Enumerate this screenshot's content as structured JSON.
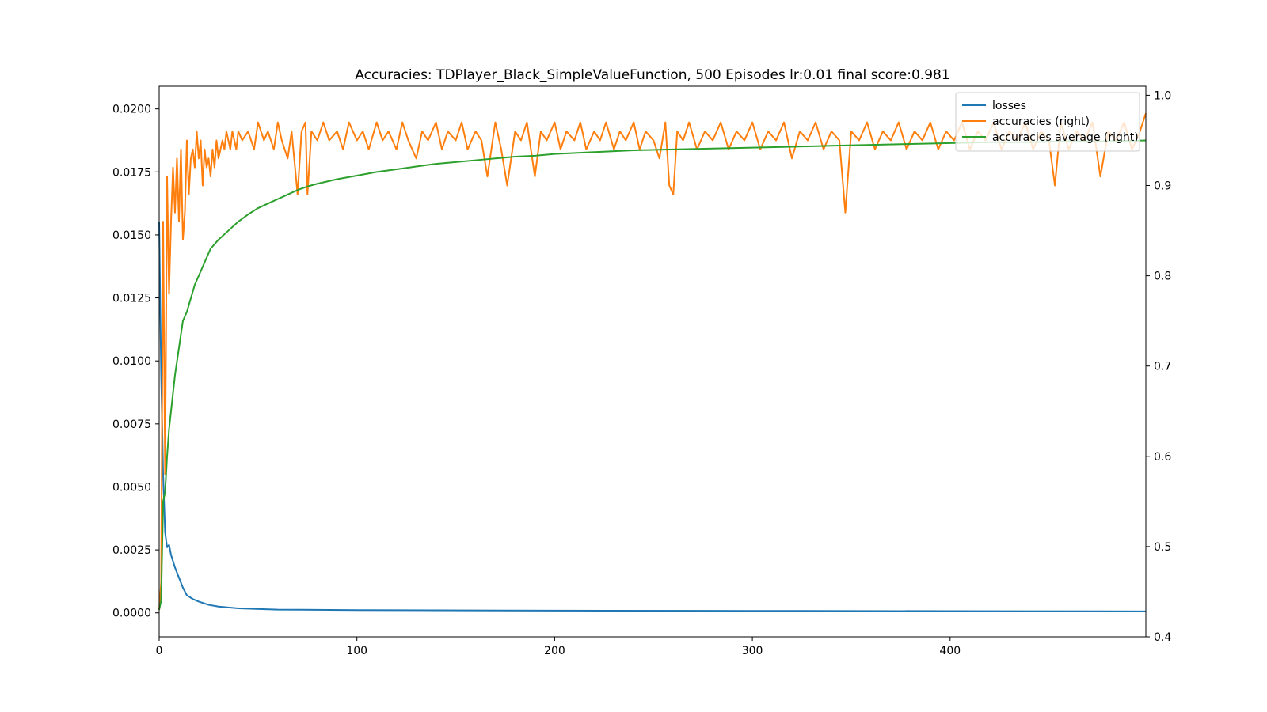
{
  "chart_data": {
    "type": "line",
    "title": "Accuracies: TDPlayer_Black_SimpleValueFunction, 500 Episodes  lr:0.01 final score:0.981",
    "xlabel": "",
    "ylabel_left": "",
    "ylabel_right": "",
    "xlim": [
      0,
      499
    ],
    "ylim_left": [
      -0.00095,
      0.0209
    ],
    "ylim_right": [
      0.4,
      1.01
    ],
    "x_ticks": [
      0,
      100,
      200,
      300,
      400
    ],
    "y_left_ticks": [
      "0.0000",
      "0.0025",
      "0.0050",
      "0.0075",
      "0.0100",
      "0.0125",
      "0.0150",
      "0.0175",
      "0.0200"
    ],
    "y_left_tick_values": [
      0.0,
      0.0025,
      0.005,
      0.0075,
      0.01,
      0.0125,
      0.015,
      0.0175,
      0.02
    ],
    "y_right_ticks": [
      "0.4",
      "0.5",
      "0.6",
      "0.7",
      "0.8",
      "0.9",
      "1.0"
    ],
    "y_right_tick_values": [
      0.4,
      0.5,
      0.6,
      0.7,
      0.8,
      0.9,
      1.0
    ],
    "grid": false,
    "legend_position": "top-right",
    "series": [
      {
        "name": "losses",
        "axis": "left",
        "color": "#1f77b4",
        "points": [
          [
            0,
            0.0155
          ],
          [
            1,
            0.0095
          ],
          [
            2,
            0.0055
          ],
          [
            3,
            0.0032
          ],
          [
            4,
            0.0026
          ],
          [
            5,
            0.0027
          ],
          [
            6,
            0.0023
          ],
          [
            8,
            0.0018
          ],
          [
            10,
            0.0014
          ],
          [
            12,
            0.001
          ],
          [
            14,
            0.0007
          ],
          [
            17,
            0.00055
          ],
          [
            20,
            0.00045
          ],
          [
            25,
            0.00032
          ],
          [
            30,
            0.00025
          ],
          [
            40,
            0.00018
          ],
          [
            60,
            0.00013
          ],
          [
            100,
            0.00011
          ],
          [
            200,
            9e-05
          ],
          [
            300,
            8e-05
          ],
          [
            400,
            7e-05
          ],
          [
            499,
            6e-05
          ]
        ]
      },
      {
        "name": "accuracies (right)",
        "axis": "right",
        "color": "#ff7f0e",
        "points": [
          [
            0,
            0.43
          ],
          [
            1,
            0.46
          ],
          [
            2,
            0.86
          ],
          [
            3,
            0.58
          ],
          [
            4,
            0.91
          ],
          [
            5,
            0.78
          ],
          [
            6,
            0.86
          ],
          [
            7,
            0.92
          ],
          [
            8,
            0.87
          ],
          [
            9,
            0.93
          ],
          [
            10,
            0.86
          ],
          [
            11,
            0.94
          ],
          [
            12,
            0.84
          ],
          [
            13,
            0.87
          ],
          [
            14,
            0.95
          ],
          [
            15,
            0.89
          ],
          [
            16,
            0.93
          ],
          [
            17,
            0.94
          ],
          [
            18,
            0.92
          ],
          [
            19,
            0.96
          ],
          [
            20,
            0.93
          ],
          [
            21,
            0.95
          ],
          [
            22,
            0.9
          ],
          [
            23,
            0.94
          ],
          [
            24,
            0.92
          ],
          [
            25,
            0.93
          ],
          [
            26,
            0.91
          ],
          [
            27,
            0.94
          ],
          [
            28,
            0.92
          ],
          [
            29,
            0.95
          ],
          [
            30,
            0.93
          ],
          [
            31,
            0.94
          ],
          [
            32,
            0.95
          ],
          [
            33,
            0.94
          ],
          [
            34,
            0.96
          ],
          [
            35,
            0.95
          ],
          [
            36,
            0.94
          ],
          [
            37,
            0.96
          ],
          [
            38,
            0.95
          ],
          [
            39,
            0.94
          ],
          [
            40,
            0.96
          ],
          [
            42,
            0.95
          ],
          [
            45,
            0.96
          ],
          [
            48,
            0.94
          ],
          [
            50,
            0.97
          ],
          [
            53,
            0.95
          ],
          [
            55,
            0.96
          ],
          [
            58,
            0.94
          ],
          [
            60,
            0.97
          ],
          [
            62,
            0.95
          ],
          [
            65,
            0.93
          ],
          [
            67,
            0.96
          ],
          [
            70,
            0.89
          ],
          [
            72,
            0.96
          ],
          [
            74,
            0.97
          ],
          [
            75,
            0.89
          ],
          [
            77,
            0.96
          ],
          [
            80,
            0.95
          ],
          [
            83,
            0.97
          ],
          [
            86,
            0.95
          ],
          [
            90,
            0.96
          ],
          [
            93,
            0.94
          ],
          [
            96,
            0.97
          ],
          [
            100,
            0.95
          ],
          [
            103,
            0.96
          ],
          [
            106,
            0.94
          ],
          [
            110,
            0.97
          ],
          [
            113,
            0.95
          ],
          [
            116,
            0.96
          ],
          [
            120,
            0.94
          ],
          [
            123,
            0.97
          ],
          [
            126,
            0.95
          ],
          [
            130,
            0.93
          ],
          [
            133,
            0.96
          ],
          [
            136,
            0.95
          ],
          [
            140,
            0.97
          ],
          [
            143,
            0.94
          ],
          [
            146,
            0.96
          ],
          [
            150,
            0.95
          ],
          [
            153,
            0.97
          ],
          [
            156,
            0.94
          ],
          [
            160,
            0.96
          ],
          [
            163,
            0.95
          ],
          [
            166,
            0.91
          ],
          [
            170,
            0.97
          ],
          [
            173,
            0.94
          ],
          [
            176,
            0.9
          ],
          [
            180,
            0.96
          ],
          [
            183,
            0.95
          ],
          [
            186,
            0.97
          ],
          [
            190,
            0.91
          ],
          [
            193,
            0.96
          ],
          [
            196,
            0.95
          ],
          [
            200,
            0.97
          ],
          [
            203,
            0.94
          ],
          [
            206,
            0.96
          ],
          [
            210,
            0.95
          ],
          [
            213,
            0.97
          ],
          [
            216,
            0.94
          ],
          [
            220,
            0.96
          ],
          [
            223,
            0.95
          ],
          [
            226,
            0.97
          ],
          [
            230,
            0.94
          ],
          [
            233,
            0.96
          ],
          [
            236,
            0.95
          ],
          [
            240,
            0.97
          ],
          [
            243,
            0.94
          ],
          [
            246,
            0.96
          ],
          [
            250,
            0.95
          ],
          [
            253,
            0.93
          ],
          [
            256,
            0.97
          ],
          [
            258,
            0.9
          ],
          [
            260,
            0.89
          ],
          [
            262,
            0.96
          ],
          [
            265,
            0.95
          ],
          [
            268,
            0.97
          ],
          [
            272,
            0.94
          ],
          [
            276,
            0.96
          ],
          [
            280,
            0.95
          ],
          [
            284,
            0.97
          ],
          [
            288,
            0.94
          ],
          [
            292,
            0.96
          ],
          [
            296,
            0.95
          ],
          [
            300,
            0.97
          ],
          [
            304,
            0.94
          ],
          [
            308,
            0.96
          ],
          [
            312,
            0.95
          ],
          [
            316,
            0.97
          ],
          [
            320,
            0.93
          ],
          [
            324,
            0.96
          ],
          [
            328,
            0.95
          ],
          [
            332,
            0.97
          ],
          [
            336,
            0.94
          ],
          [
            340,
            0.96
          ],
          [
            344,
            0.95
          ],
          [
            347,
            0.87
          ],
          [
            350,
            0.96
          ],
          [
            354,
            0.95
          ],
          [
            358,
            0.97
          ],
          [
            362,
            0.94
          ],
          [
            366,
            0.96
          ],
          [
            370,
            0.95
          ],
          [
            374,
            0.97
          ],
          [
            378,
            0.94
          ],
          [
            382,
            0.96
          ],
          [
            386,
            0.95
          ],
          [
            390,
            0.97
          ],
          [
            394,
            0.94
          ],
          [
            398,
            0.96
          ],
          [
            402,
            0.95
          ],
          [
            406,
            0.97
          ],
          [
            410,
            0.94
          ],
          [
            414,
            0.96
          ],
          [
            418,
            0.95
          ],
          [
            422,
            0.97
          ],
          [
            426,
            0.94
          ],
          [
            430,
            0.96
          ],
          [
            434,
            0.95
          ],
          [
            438,
            0.97
          ],
          [
            442,
            0.94
          ],
          [
            446,
            0.96
          ],
          [
            450,
            0.95
          ],
          [
            453,
            0.9
          ],
          [
            456,
            0.97
          ],
          [
            460,
            0.94
          ],
          [
            464,
            0.96
          ],
          [
            468,
            0.95
          ],
          [
            472,
            0.97
          ],
          [
            476,
            0.91
          ],
          [
            480,
            0.96
          ],
          [
            484,
            0.95
          ],
          [
            488,
            0.97
          ],
          [
            492,
            0.94
          ],
          [
            496,
            0.96
          ],
          [
            499,
            0.98
          ]
        ]
      },
      {
        "name": "accuracies average (right)",
        "axis": "right",
        "color": "#2ca02c",
        "points": [
          [
            0,
            0.43
          ],
          [
            1,
            0.44
          ],
          [
            2,
            0.55
          ],
          [
            3,
            0.56
          ],
          [
            4,
            0.6
          ],
          [
            5,
            0.63
          ],
          [
            6,
            0.65
          ],
          [
            8,
            0.69
          ],
          [
            10,
            0.72
          ],
          [
            12,
            0.75
          ],
          [
            14,
            0.76
          ],
          [
            16,
            0.775
          ],
          [
            18,
            0.79
          ],
          [
            20,
            0.8
          ],
          [
            23,
            0.815
          ],
          [
            26,
            0.83
          ],
          [
            30,
            0.84
          ],
          [
            35,
            0.85
          ],
          [
            40,
            0.86
          ],
          [
            45,
            0.868
          ],
          [
            50,
            0.875
          ],
          [
            55,
            0.88
          ],
          [
            60,
            0.885
          ],
          [
            65,
            0.89
          ],
          [
            70,
            0.895
          ],
          [
            75,
            0.899
          ],
          [
            80,
            0.902
          ],
          [
            90,
            0.907
          ],
          [
            100,
            0.911
          ],
          [
            110,
            0.915
          ],
          [
            120,
            0.918
          ],
          [
            130,
            0.921
          ],
          [
            140,
            0.924
          ],
          [
            150,
            0.926
          ],
          [
            160,
            0.928
          ],
          [
            170,
            0.93
          ],
          [
            180,
            0.932
          ],
          [
            190,
            0.933
          ],
          [
            200,
            0.935
          ],
          [
            220,
            0.937
          ],
          [
            240,
            0.939
          ],
          [
            260,
            0.94
          ],
          [
            280,
            0.941
          ],
          [
            300,
            0.942
          ],
          [
            320,
            0.943
          ],
          [
            340,
            0.944
          ],
          [
            360,
            0.945
          ],
          [
            380,
            0.946
          ],
          [
            400,
            0.947
          ],
          [
            420,
            0.948
          ],
          [
            440,
            0.948
          ],
          [
            460,
            0.949
          ],
          [
            480,
            0.949
          ],
          [
            499,
            0.95
          ]
        ]
      }
    ]
  }
}
